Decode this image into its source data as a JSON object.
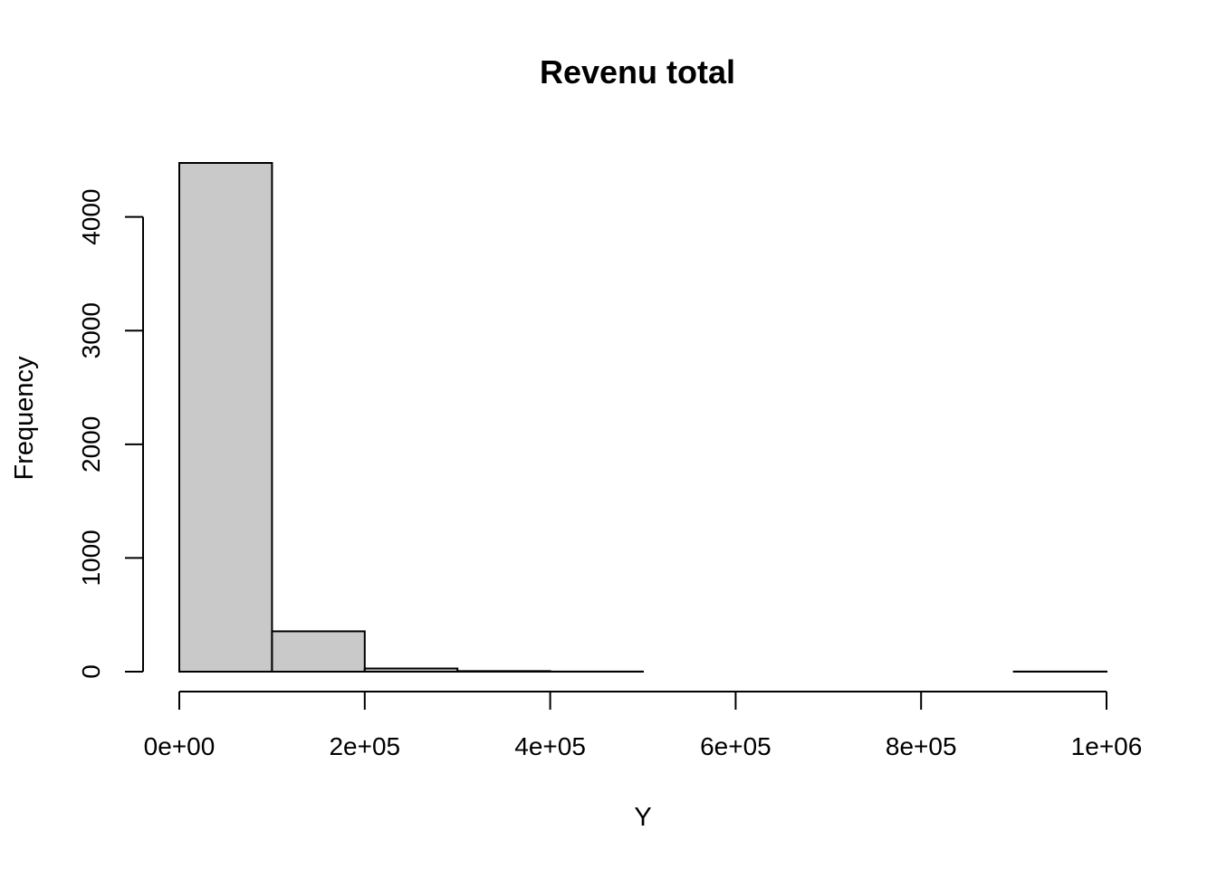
{
  "chart_data": {
    "type": "bar",
    "title": "Revenu total",
    "xlabel": "Y",
    "ylabel": "Frequency",
    "bin_edges": [
      0,
      100000,
      200000,
      300000,
      400000,
      500000,
      600000,
      700000,
      800000,
      900000,
      1000000
    ],
    "values": [
      4475,
      355,
      28,
      5,
      1,
      0,
      0,
      0,
      0,
      1
    ],
    "xlim": [
      0,
      1000000
    ],
    "ylim": [
      0,
      4475
    ],
    "x_ticks": [
      0,
      200000,
      400000,
      600000,
      800000,
      1000000
    ],
    "x_tick_labels": [
      "0e+00",
      "2e+05",
      "4e+05",
      "6e+05",
      "8e+05",
      "1e+06"
    ],
    "y_ticks": [
      0,
      1000,
      2000,
      3000,
      4000
    ],
    "y_tick_labels": [
      "0",
      "1000",
      "2000",
      "3000",
      "4000"
    ],
    "grid": false,
    "bar_color": "#c9c9c9"
  }
}
